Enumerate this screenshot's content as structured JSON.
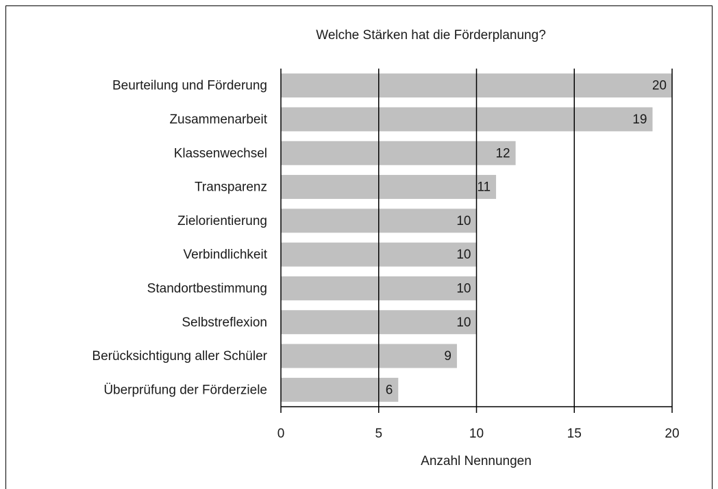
{
  "chart_data": {
    "type": "bar",
    "orientation": "horizontal",
    "title": "Welche Stärken hat die Förderplanung?",
    "x_label": "Anzahl Nennungen",
    "categories": [
      "Beurteilung und Förderung",
      "Zusammenarbeit",
      "Klassenwechsel",
      "Transparenz",
      "Zielorientierung",
      "Verbindlichkeit",
      "Standortbestimmung",
      "Selbstreflexion",
      "Berücksichtigung aller Schüler",
      "Überprüfung der Förderziele"
    ],
    "values": [
      20,
      19,
      12,
      11,
      10,
      10,
      10,
      10,
      9,
      6
    ],
    "color": "#c0c0c0",
    "xlim": [
      0,
      20
    ],
    "xticks": [
      0,
      5,
      10,
      15,
      20
    ],
    "grid": true
  }
}
